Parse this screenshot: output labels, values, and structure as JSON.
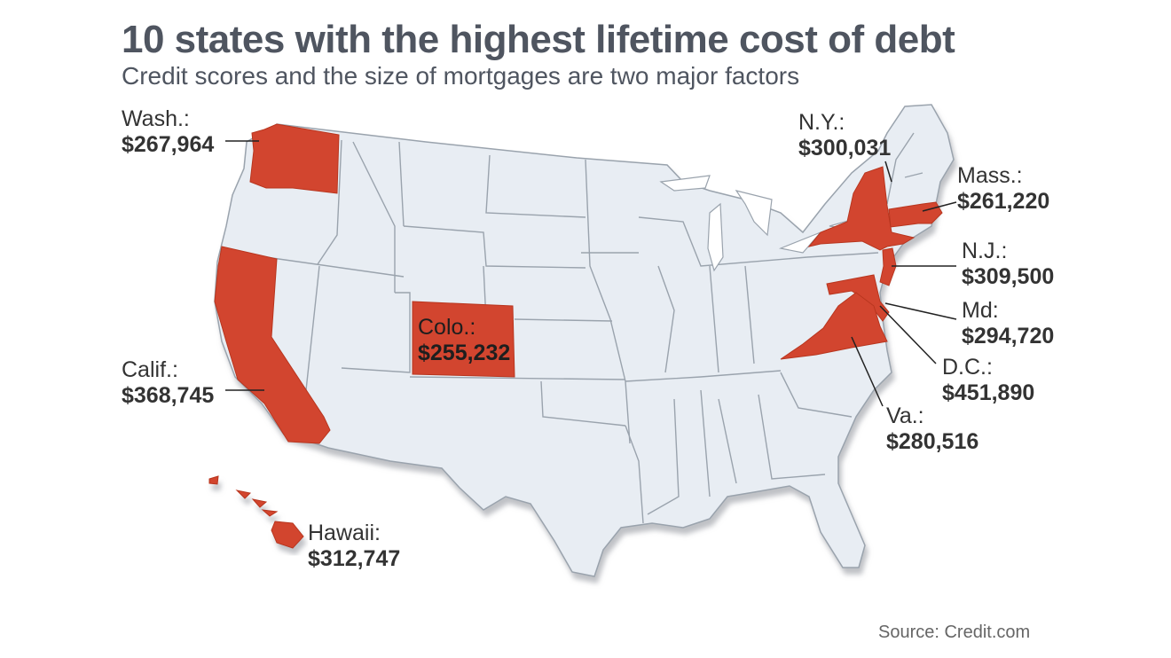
{
  "title": "10 states with the highest lifetime cost of debt",
  "subtitle": "Credit scores and the size of mortgages are two major factors",
  "source": "Source: Credit.com",
  "colors": {
    "highlight": "#d2452f",
    "land": "#e8edf3",
    "border": "#9aa3ad",
    "text": "#4f5560"
  },
  "labels": {
    "wash": {
      "name": "Wash.:",
      "value": "$267,964"
    },
    "calif": {
      "name": "Calif.:",
      "value": "$368,745"
    },
    "colo": {
      "name": "Colo.:",
      "value": "$255,232"
    },
    "hawaii": {
      "name": "Hawaii:",
      "value": "$312,747"
    },
    "ny": {
      "name": "N.Y.:",
      "value": "$300,031"
    },
    "mass": {
      "name": "Mass.:",
      "value": "$261,220"
    },
    "nj": {
      "name": "N.J.:",
      "value": "$309,500"
    },
    "md": {
      "name": "Md:",
      "value": "$294,720"
    },
    "dc": {
      "name": "D.C.:",
      "value": "$451,890"
    },
    "va": {
      "name": "Va.:",
      "value": "$280,516"
    }
  }
}
